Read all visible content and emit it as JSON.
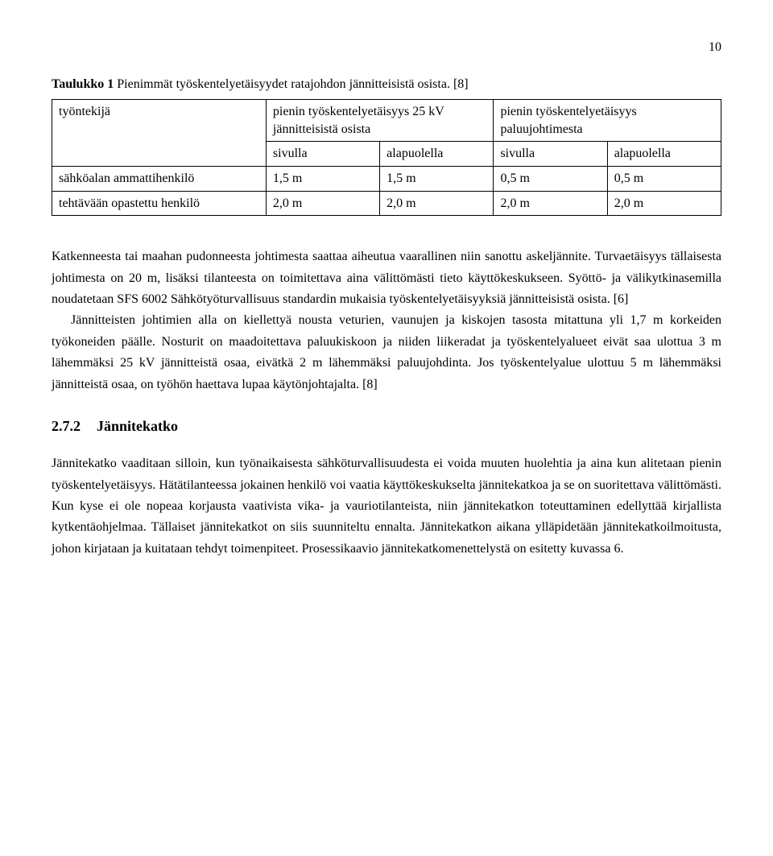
{
  "page_number": "10",
  "table": {
    "caption_prefix": "Taulukko 1",
    "caption_rest": " Pienimmät työskentelyetäisyydet ratajohdon jännitteisistä osista. [8]",
    "row_header_blank": "työntekijä",
    "group1_title": "pienin työskentelyetäisyys 25 kV jännitteisistä osista",
    "group2_title": "pienin työskentelyetäisyys paluujohtimesta",
    "sub1": "sivulla",
    "sub2": "alapuolella",
    "sub3": "sivulla",
    "sub4": "alapuolella",
    "rows": [
      {
        "label": "sähköalan ammattihenkilö",
        "c1": "1,5 m",
        "c2": "1,5 m",
        "c3": "0,5 m",
        "c4": "0,5 m"
      },
      {
        "label": "tehtävään opastettu henkilö",
        "c1": "2,0 m",
        "c2": "2,0 m",
        "c3": "2,0 m",
        "c4": "2,0 m"
      }
    ]
  },
  "para1": "Katkenneesta tai maahan pudonneesta johtimesta saattaa aiheutua vaarallinen niin sanottu askeljännite. Turvaetäisyys tällaisesta johtimesta on 20 m, lisäksi tilanteesta on toimitettava aina välittömästi tieto käyttökeskukseen. Syöttö- ja välikytkinasemilla noudatetaan SFS 6002 Sähkötyöturvallisuus standardin mukaisia työskentelyetäisyyksiä jännitteisistä osista. [6]",
  "para2": "Jännitteisten johtimien alla on kiellettyä nousta veturien, vaunujen ja kiskojen tasosta mitattuna yli 1,7 m korkeiden työkoneiden päälle. Nosturit on maadoitettava paluukiskoon ja niiden liikeradat ja työskentelyalueet eivät saa ulottua 3 m lähemmäksi 25 kV jännitteistä osaa, eivätkä 2 m lähemmäksi paluujohdinta. Jos työskentelyalue ulottuu 5 m lähemmäksi jännitteistä osaa, on työhön haettava lupaa käytönjohtajalta. [8]",
  "section": {
    "number": "2.7.2",
    "title": "Jännitekatko"
  },
  "para3": "Jännitekatko vaaditaan silloin, kun työnaikaisesta sähköturvallisuudesta ei voida muuten huolehtia ja aina kun alitetaan pienin työskentelyetäisyys. Hätätilanteessa jokainen henkilö voi vaatia käyttökeskukselta jännitekatkoa ja se on suoritettava välittömästi. Kun kyse ei ole nopeaa korjausta vaativista vika- ja vauriotilanteista, niin jännitekatkon toteuttaminen edellyttää kirjallista kytkentäohjelmaa. Tällaiset jännitekatkot on siis suunniteltu ennalta. Jännitekatkon aikana ylläpidetään jännitekatkoilmoitusta, johon kirjataan ja kuitataan tehdyt toimenpiteet. Prosessikaavio jännitekatkomenettelystä on esitetty kuvassa 6."
}
